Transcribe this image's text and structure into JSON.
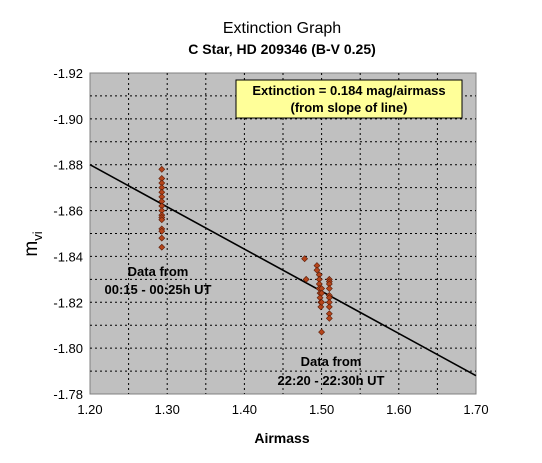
{
  "chart_data": {
    "type": "scatter",
    "title": "Extinction Graph",
    "subtitle": "C Star, HD 209346  (B-V 0.25)",
    "xlabel": "Airmass",
    "ylabel": "m",
    "ylabel_subscript": "vi",
    "xlim": [
      1.2,
      1.7
    ],
    "ylim": [
      -1.92,
      -1.78
    ],
    "y_reversed": true,
    "x_ticks": [
      "1.20",
      "1.30",
      "1.40",
      "1.50",
      "1.60",
      "1.70"
    ],
    "y_ticks": [
      "-1.92",
      "-1.90",
      "-1.88",
      "-1.86",
      "-1.84",
      "-1.82",
      "-1.80",
      "-1.78"
    ],
    "grid": true,
    "plot_background": "#c0c0c0",
    "marker_color": "#b5451b",
    "marker_shape": "diamond",
    "series": [
      {
        "x": [
          1.293,
          1.293,
          1.293,
          1.293,
          1.293,
          1.293,
          1.293,
          1.293,
          1.293,
          1.293,
          1.293,
          1.293,
          1.293,
          1.293,
          1.293,
          1.293,
          1.478,
          1.48,
          1.494,
          1.494,
          1.497,
          1.497,
          1.497,
          1.497,
          1.498,
          1.498,
          1.499,
          1.499,
          1.5,
          1.5,
          1.5,
          1.5,
          1.51,
          1.51,
          1.51,
          1.51,
          1.51,
          1.51,
          1.51,
          1.51,
          1.51,
          1.51
        ],
        "y": [
          -1.878,
          -1.874,
          -1.872,
          -1.87,
          -1.868,
          -1.866,
          -1.864,
          -1.862,
          -1.86,
          -1.858,
          -1.857,
          -1.856,
          -1.852,
          -1.851,
          -1.848,
          -1.844,
          -1.839,
          -1.83,
          -1.836,
          -1.834,
          -1.832,
          -1.83,
          -1.828,
          -1.826,
          -1.824,
          -1.822,
          -1.82,
          -1.818,
          -1.826,
          -1.824,
          -1.82,
          -1.807,
          -1.83,
          -1.829,
          -1.828,
          -1.826,
          -1.823,
          -1.822,
          -1.82,
          -1.818,
          -1.815,
          -1.813
        ]
      }
    ],
    "fit_line": {
      "x": [
        1.2,
        1.7
      ],
      "y": [
        -1.88,
        -1.788
      ]
    },
    "annotations": {
      "box_line1": "Extinction = 0.184 mag/airmass",
      "box_line2": "(from slope of line)",
      "left_line1": "Data from",
      "left_line2": "00:15 - 00:25h UT",
      "right_line1": "Data from",
      "right_line2": "22:20 - 22:30h UT"
    },
    "box_color": "#ffff99"
  }
}
